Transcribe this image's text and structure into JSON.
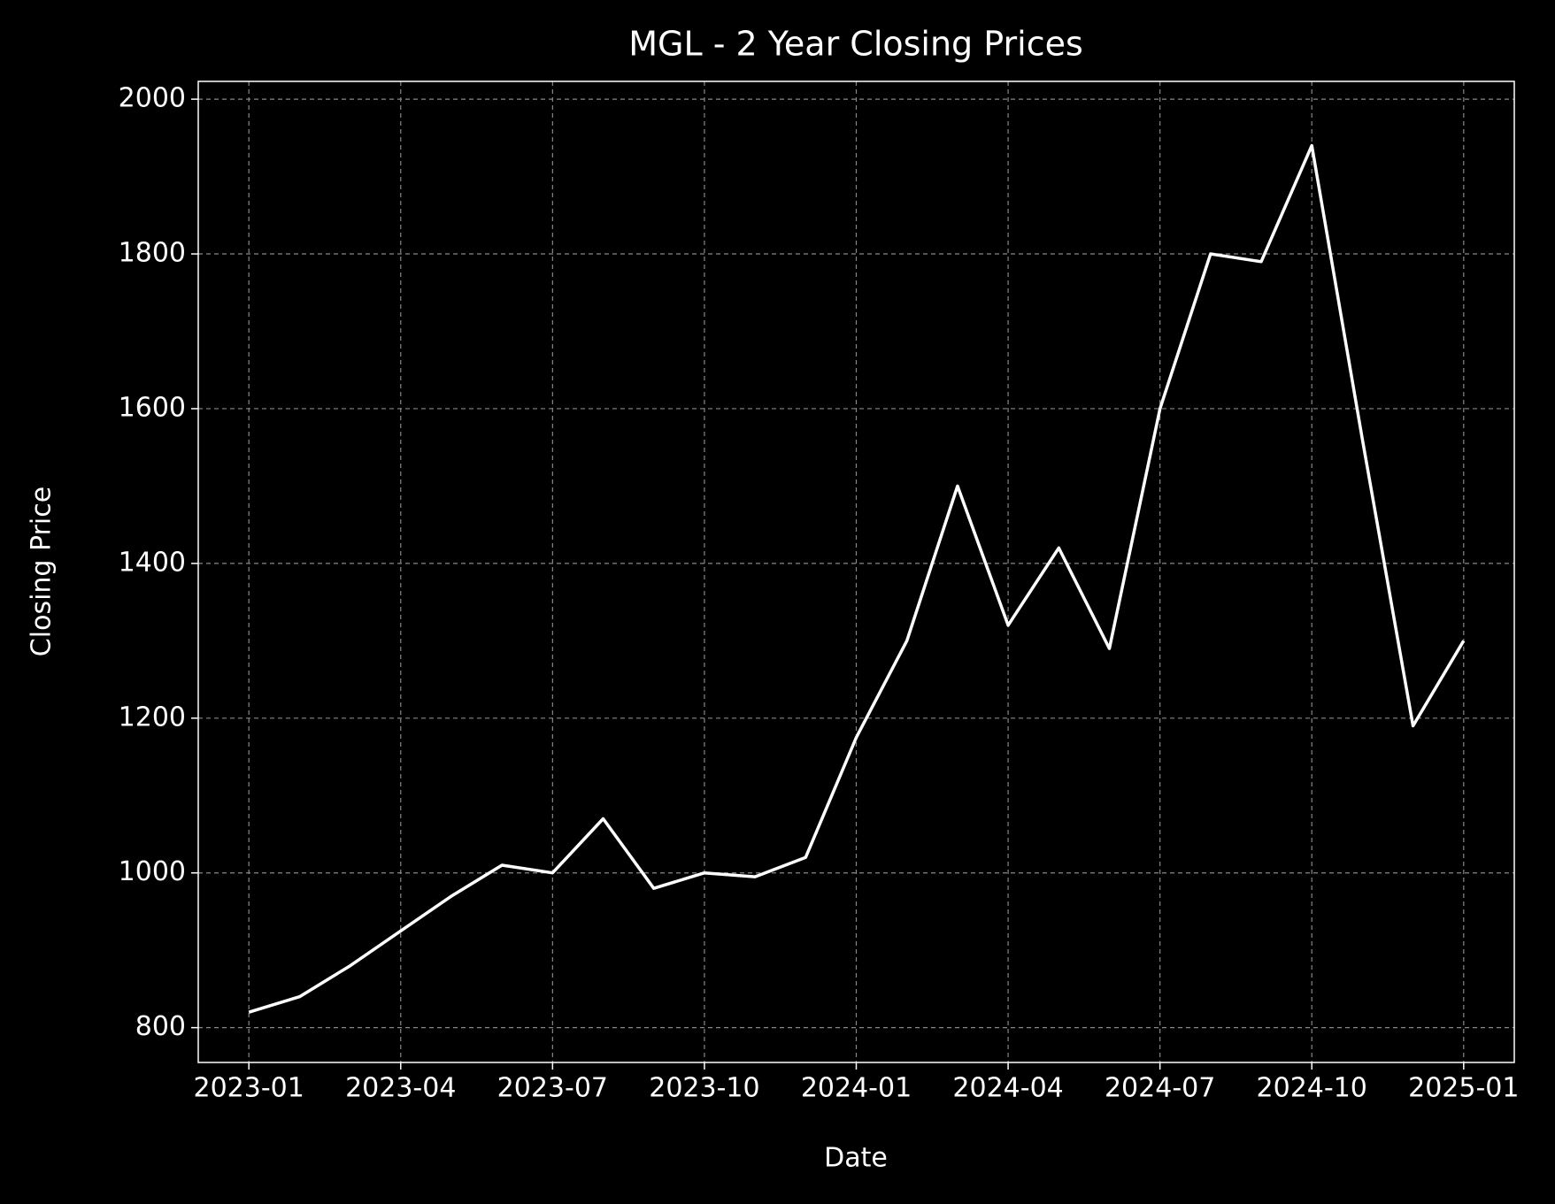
{
  "chart_data": {
    "type": "line",
    "title": "MGL - 2 Year Closing Prices",
    "x_label": "Date",
    "y_label": "Closing Price",
    "x": [
      "2023-01",
      "2023-02",
      "2023-03",
      "2023-04",
      "2023-05",
      "2023-06",
      "2023-07",
      "2023-08",
      "2023-09",
      "2023-10",
      "2023-11",
      "2023-12",
      "2024-01",
      "2024-02",
      "2024-03",
      "2024-04",
      "2024-05",
      "2024-06",
      "2024-07",
      "2024-08",
      "2024-09",
      "2024-10",
      "2024-11",
      "2024-12",
      "2025-01"
    ],
    "series": [
      {
        "color": "#ffffff",
        "values": [
          820,
          840,
          880,
          925,
          970,
          1010,
          1000,
          1070,
          980,
          1000,
          995,
          1020,
          1175,
          1300,
          1500,
          1320,
          1420,
          1290,
          1600,
          1800,
          1790,
          1940,
          1560,
          1190,
          1300
        ]
      }
    ],
    "xlim": [
      "2022-12",
      "2025-02"
    ],
    "xticks": [
      "2023-01",
      "2023-04",
      "2023-07",
      "2023-10",
      "2024-01",
      "2024-04",
      "2024-07",
      "2024-10",
      "2025-01"
    ],
    "ylim": [
      755,
      2023
    ],
    "yticks": [
      800,
      1000,
      1200,
      1400,
      1600,
      1800,
      2000
    ],
    "grid": true
  }
}
